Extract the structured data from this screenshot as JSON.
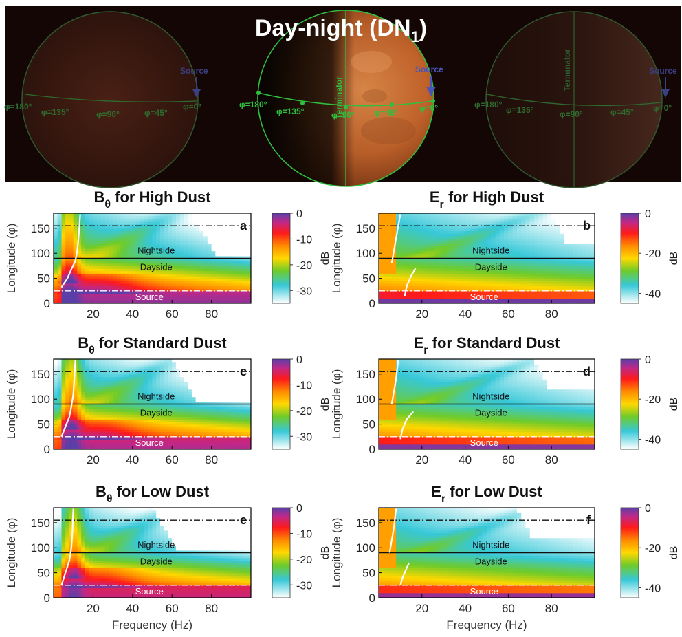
{
  "header": {
    "title_main": "Day-night (DN",
    "title_sub": "1",
    "title_close": ")",
    "source_label": "Source",
    "terminator_label": "Terminator",
    "phi_labels": [
      "φ=180°",
      "φ=135°",
      "φ=90°",
      "φ=45°",
      "φ=0°"
    ]
  },
  "colorbar": {
    "unit": "dB",
    "left_ticks": [
      "0",
      "-10",
      "-20",
      "-30"
    ],
    "left_range": [
      -35,
      0
    ],
    "right_ticks": [
      "0",
      "-20",
      "-40"
    ],
    "right_range": [
      -45,
      0
    ]
  },
  "chart_data": [
    {
      "type": "heatmap",
      "panel": "a",
      "title": "B",
      "title_sub": "θ",
      "title_rest": " for High Dust",
      "field": "B",
      "dust": "high",
      "xlabel": "",
      "ylabel": "Longitude (φ)",
      "xlim": [
        0,
        100
      ],
      "ylim": [
        0,
        180
      ],
      "xticks": [
        "20",
        "40",
        "60",
        "80"
      ],
      "yticks": [
        "0",
        "50",
        "100",
        "150"
      ],
      "annotations": {
        "nightside": "Nightside",
        "dayside": "Dayside",
        "source": "Source"
      },
      "reference_lines": {
        "terminator": 90,
        "source": 25,
        "upper": 155
      },
      "resonance_curve": [
        [
          4,
          32
        ],
        [
          7,
          50
        ],
        [
          9,
          68
        ],
        [
          11,
          85
        ],
        [
          12,
          105
        ],
        [
          12.5,
          125
        ],
        [
          13,
          150
        ],
        [
          13.5,
          178
        ]
      ]
    },
    {
      "type": "heatmap",
      "panel": "b",
      "title": "E",
      "title_sub": "r",
      "title_rest": " for High Dust",
      "field": "E",
      "dust": "high",
      "xlabel": "",
      "ylabel": "",
      "xlim": [
        0,
        100
      ],
      "ylim": [
        0,
        180
      ],
      "xticks": [
        "20",
        "40",
        "60",
        "80"
      ],
      "yticks": [
        "0",
        "50",
        "100",
        "150"
      ],
      "annotations": {
        "nightside": "Nightside",
        "dayside": "Dayside",
        "source": "Source"
      },
      "reference_lines": {
        "terminator": 90,
        "source": 25,
        "upper": 155
      },
      "resonance_curve": [
        [
          6,
          80
        ],
        [
          7,
          105
        ],
        [
          8,
          130
        ],
        [
          9,
          155
        ],
        [
          10,
          178
        ]
      ],
      "resonance_curve_2": [
        [
          12,
          15
        ],
        [
          13,
          35
        ],
        [
          15,
          55
        ],
        [
          17,
          70
        ]
      ]
    },
    {
      "type": "heatmap",
      "panel": "c",
      "title": "B",
      "title_sub": "θ",
      "title_rest": " for Standard Dust",
      "field": "B",
      "dust": "standard",
      "xlabel": "",
      "ylabel": "Longitude (φ)",
      "xlim": [
        0,
        100
      ],
      "ylim": [
        0,
        180
      ],
      "xticks": [
        "20",
        "40",
        "60",
        "80"
      ],
      "yticks": [
        "0",
        "50",
        "100",
        "150"
      ],
      "annotations": {
        "nightside": "Nightside",
        "dayside": "Dayside",
        "source": "Source"
      },
      "reference_lines": {
        "terminator": 90,
        "source": 25,
        "upper": 155
      },
      "resonance_curve": [
        [
          4,
          25
        ],
        [
          6,
          45
        ],
        [
          8,
          65
        ],
        [
          9,
          85
        ],
        [
          10,
          110
        ],
        [
          10.5,
          140
        ],
        [
          11,
          178
        ]
      ]
    },
    {
      "type": "heatmap",
      "panel": "d",
      "title": "E",
      "title_sub": "r",
      "title_rest": " for Standard Dust",
      "field": "E",
      "dust": "standard",
      "xlabel": "",
      "ylabel": "",
      "xlim": [
        0,
        100
      ],
      "ylim": [
        0,
        180
      ],
      "xticks": [
        "20",
        "40",
        "60",
        "80"
      ],
      "yticks": [
        "0",
        "50",
        "100",
        "150"
      ],
      "annotations": {
        "nightside": "Nightside",
        "dayside": "Dayside",
        "source": "Source"
      },
      "reference_lines": {
        "terminator": 90,
        "source": 25,
        "upper": 155
      },
      "resonance_curve": [
        [
          6,
          90
        ],
        [
          7,
          115
        ],
        [
          8,
          140
        ],
        [
          9,
          178
        ]
      ],
      "resonance_curve_2": [
        [
          10,
          20
        ],
        [
          11,
          40
        ],
        [
          13,
          60
        ],
        [
          16,
          75
        ]
      ]
    },
    {
      "type": "heatmap",
      "panel": "e",
      "title": "B",
      "title_sub": "θ",
      "title_rest": " for Low Dust",
      "field": "B",
      "dust": "low",
      "xlabel": "Frequency (Hz)",
      "ylabel": "Longitude (φ)",
      "xlim": [
        0,
        100
      ],
      "ylim": [
        0,
        180
      ],
      "xticks": [
        "20",
        "40",
        "60",
        "80"
      ],
      "yticks": [
        "0",
        "50",
        "100",
        "150"
      ],
      "annotations": {
        "nightside": "Nightside",
        "dayside": "Dayside",
        "source": "Source"
      },
      "reference_lines": {
        "terminator": 90,
        "source": 25,
        "upper": 155
      },
      "resonance_curve": [
        [
          4,
          25
        ],
        [
          6,
          50
        ],
        [
          8,
          75
        ],
        [
          9,
          100
        ],
        [
          9.5,
          130
        ],
        [
          10,
          178
        ]
      ]
    },
    {
      "type": "heatmap",
      "panel": "f",
      "title": "E",
      "title_sub": "r",
      "title_rest": " for Low Dust",
      "field": "E",
      "dust": "low",
      "xlabel": "Frequency (Hz)",
      "ylabel": "",
      "xlim": [
        0,
        100
      ],
      "ylim": [
        0,
        180
      ],
      "xticks": [
        "20",
        "40",
        "60",
        "80"
      ],
      "yticks": [
        "0",
        "50",
        "100",
        "150"
      ],
      "annotations": {
        "nightside": "Nightside",
        "dayside": "Dayside",
        "source": "Source"
      },
      "reference_lines": {
        "terminator": 90,
        "source": 25,
        "upper": 155
      },
      "resonance_curve": [
        [
          5,
          90
        ],
        [
          6,
          115
        ],
        [
          7,
          140
        ],
        [
          8,
          178
        ]
      ],
      "resonance_curve_2": [
        [
          10,
          25
        ],
        [
          11,
          40
        ],
        [
          13,
          60
        ],
        [
          14,
          70
        ]
      ]
    }
  ]
}
